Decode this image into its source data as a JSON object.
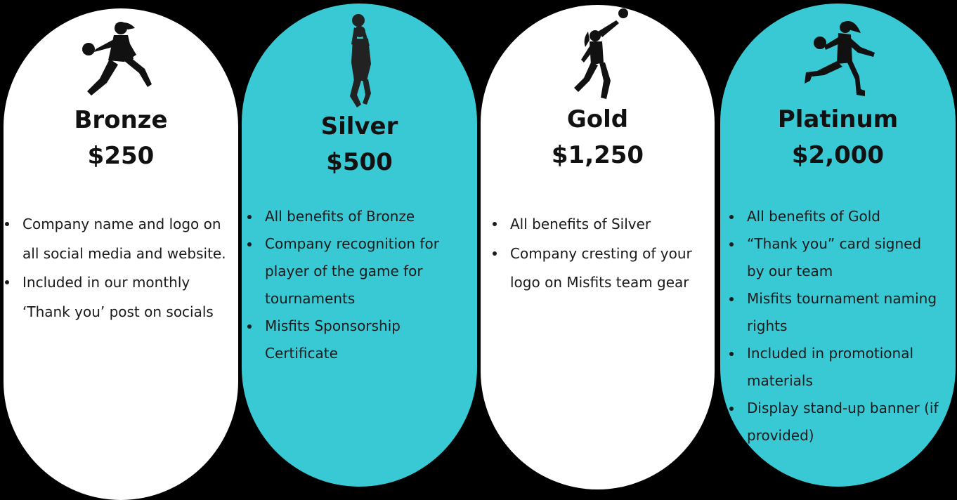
{
  "colors": {
    "background": "#000000",
    "white_card": "#ffffff",
    "teal_card": "#38c9d4",
    "text": "#111111"
  },
  "tiers": [
    {
      "title": "Bronze",
      "price": "$250",
      "icon": "basketball-player-dribbling-icon",
      "benefits": [
        "Company name and logo on all social media and website.",
        "Included in our monthly ‘Thank you’ post on socials"
      ]
    },
    {
      "title": "Silver",
      "price": "$500",
      "icon": "basketball-player-shooting-icon",
      "benefits": [
        "All benefits of Bronze",
        "Company recognition for player of the game for tournaments",
        "Misfits Sponsorship Certificate"
      ]
    },
    {
      "title": "Gold",
      "price": "$1,250",
      "icon": "basketball-player-jumping-icon",
      "benefits": [
        "All benefits of Silver",
        "Company cresting of your logo on Misfits team gear"
      ]
    },
    {
      "title": "Platinum",
      "price": "$2,000",
      "icon": "basketball-player-running-icon",
      "benefits": [
        "All benefits of Gold",
        "“Thank you” card signed by our team",
        "Misfits tournament naming rights",
        "Included in promotional materials",
        "Display stand-up banner (if provided)"
      ]
    }
  ]
}
